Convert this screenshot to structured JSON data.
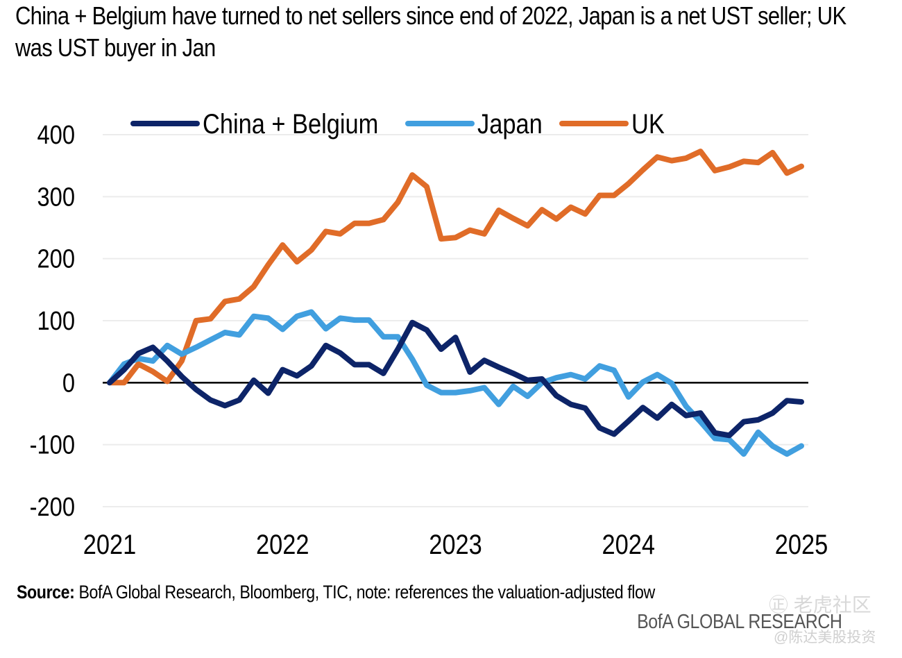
{
  "chart_data": {
    "type": "line",
    "title": "China + Belgium have turned to net sellers since end of 2022, Japan is a net UST seller; UK was UST buyer in Jan",
    "xlabel": "",
    "ylabel": "",
    "ylim": [
      -200,
      400
    ],
    "yticks": [
      "400",
      "300",
      "200",
      "100",
      "0",
      "-100",
      "-200"
    ],
    "ytick_values": [
      400,
      300,
      200,
      100,
      0,
      -100,
      -200
    ],
    "xtick_labels": [
      "2021",
      "2022",
      "2023",
      "2024",
      "2025"
    ],
    "x_start": "2021-01",
    "x_end": "2025-01",
    "frequency": "monthly",
    "grid": true,
    "legend_position": "top",
    "series": [
      {
        "name": "China + Belgium",
        "color": "#0d2468",
        "values": [
          0,
          21,
          47,
          57,
          35,
          10,
          -11,
          -28,
          -37,
          -28,
          4,
          -17,
          21,
          11,
          27,
          60,
          48,
          29,
          29,
          15,
          54,
          97,
          85,
          54,
          73,
          17,
          36,
          25,
          15,
          4,
          6,
          -21,
          -35,
          -41,
          -73,
          -83,
          -62,
          -40,
          -57,
          -35,
          -53,
          -49,
          -81,
          -85,
          -63,
          -60,
          -49,
          -29,
          -31
        ]
      },
      {
        "name": "Japan",
        "color": "#419fdf",
        "values": [
          0,
          30,
          39,
          35,
          60,
          46,
          57,
          69,
          81,
          77,
          107,
          104,
          86,
          107,
          114,
          87,
          104,
          101,
          101,
          74,
          74,
          38,
          -4,
          -16,
          -16,
          -13,
          -8,
          -35,
          -6,
          -22,
          0,
          8,
          13,
          6,
          27,
          20,
          -23,
          1,
          13,
          -1,
          -38,
          -63,
          -90,
          -92,
          -115,
          -80,
          -102,
          -115,
          -102
        ]
      },
      {
        "name": "UK",
        "color": "#e06c28",
        "values": [
          0,
          0,
          30,
          18,
          2,
          35,
          100,
          103,
          131,
          135,
          155,
          190,
          222,
          195,
          214,
          244,
          240,
          257,
          257,
          263,
          291,
          335,
          316,
          232,
          234,
          246,
          240,
          278,
          265,
          253,
          279,
          264,
          283,
          272,
          302,
          302,
          321,
          343,
          364,
          358,
          362,
          373,
          342,
          348,
          357,
          355,
          371,
          338,
          349
        ]
      }
    ]
  },
  "footer": {
    "source_label": "Source:",
    "source_text": " BofA Global Research, Bloomberg, TIC, note: references the valuation-adjusted flow",
    "brand": "BofA GLOBAL RESEARCH",
    "watermark_top": "㊣ 老虎社区",
    "watermark_bottom": "@陈达美股投资"
  }
}
